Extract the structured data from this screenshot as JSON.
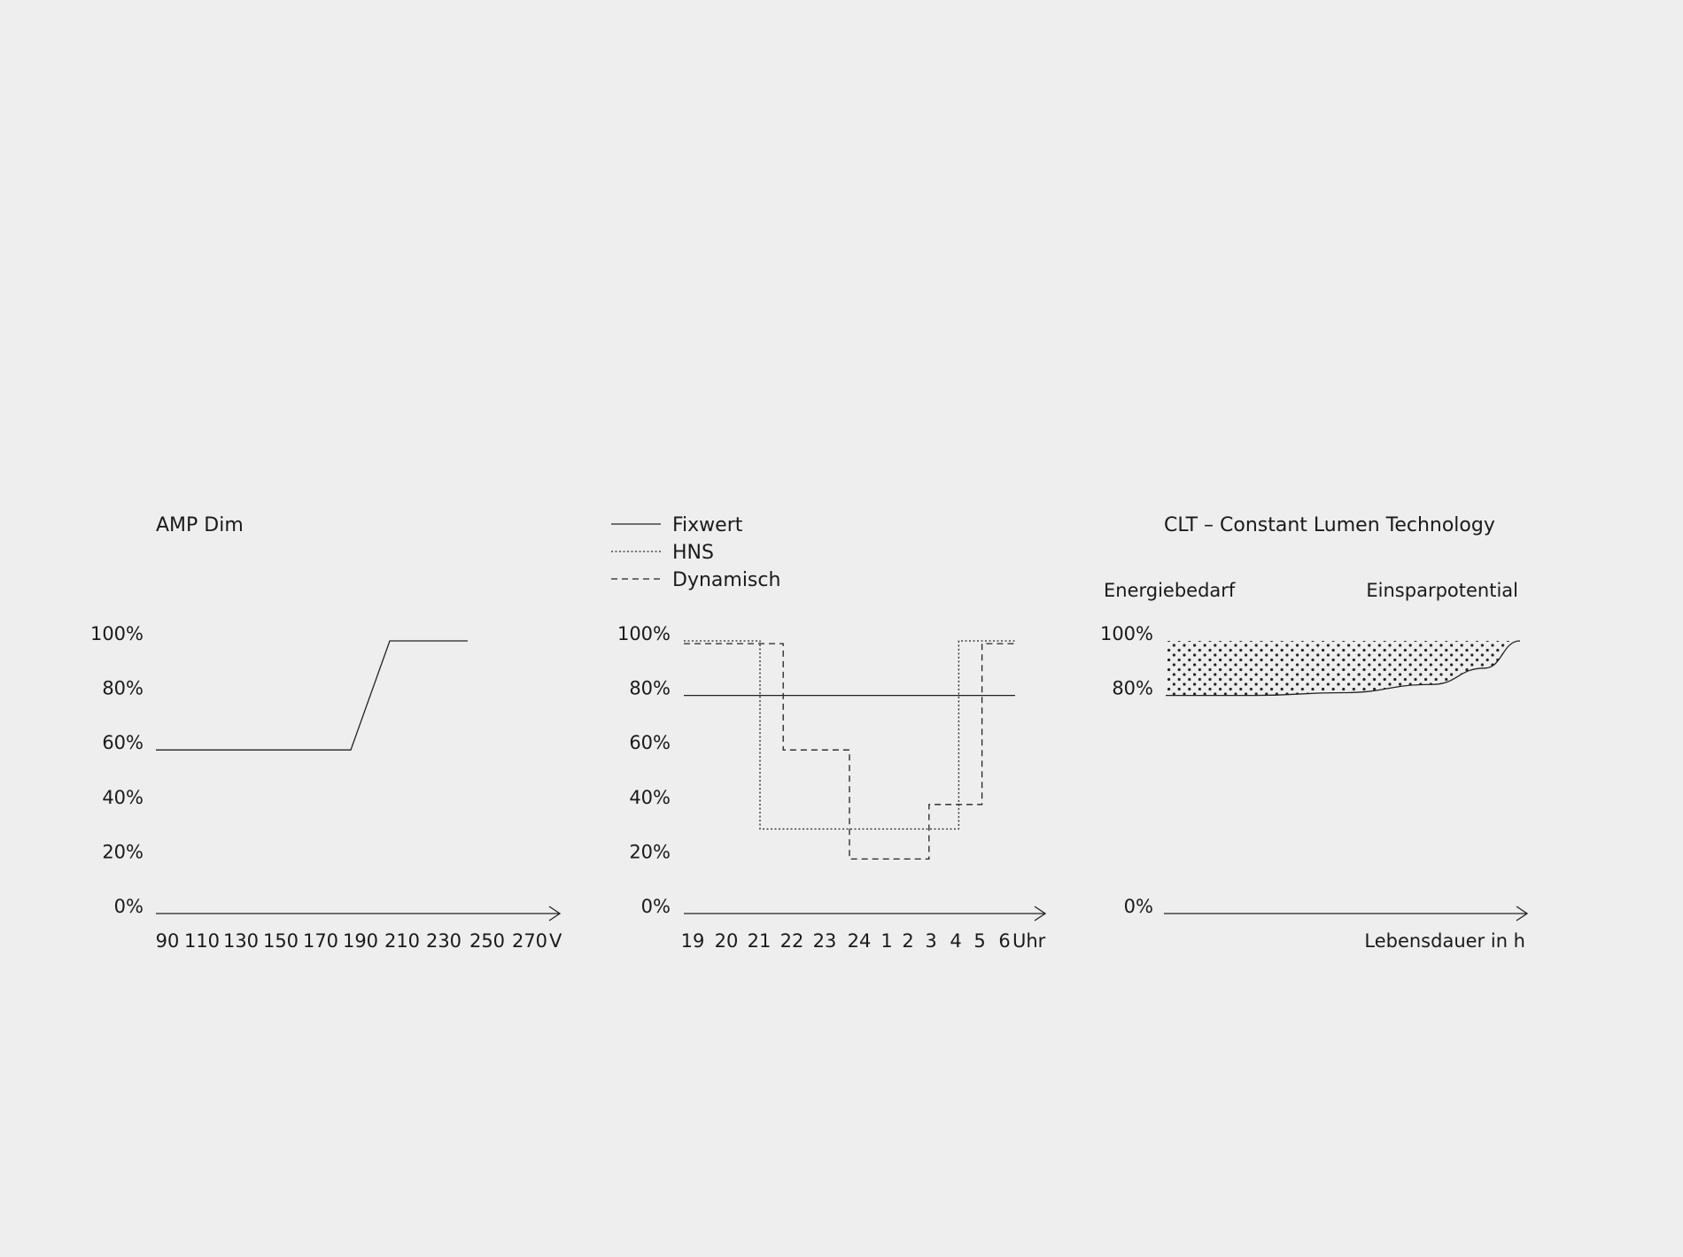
{
  "chart_data": [
    {
      "type": "line",
      "title": "AMP Dim",
      "yticks": [
        "0%",
        "20%",
        "40%",
        "60%",
        "80%",
        "100%"
      ],
      "xticks": [
        "90",
        "110",
        "130",
        "150",
        "170",
        "190",
        "210",
        "230",
        "250",
        "270"
      ],
      "xunit": "V",
      "series": [
        {
          "x": [
            90,
            190,
            210,
            250
          ],
          "y": [
            60,
            60,
            100,
            100
          ],
          "style": "solid"
        }
      ],
      "ylim": [
        0,
        100
      ],
      "xlim": [
        90,
        280
      ]
    },
    {
      "type": "line",
      "legend": [
        {
          "name": "Fixwert",
          "style": "solid"
        },
        {
          "name": "HNS",
          "style": "dotted"
        },
        {
          "name": "Dynamisch",
          "style": "dashed"
        }
      ],
      "legend_position": "top-left",
      "yticks": [
        "0%",
        "20%",
        "40%",
        "60%",
        "80%",
        "100%"
      ],
      "xticks": [
        "19",
        "20",
        "21",
        "22",
        "23",
        "24",
        "1",
        "2",
        "3",
        "4",
        "5",
        "6"
      ],
      "xunit": "Uhr",
      "series": [
        {
          "name": "Fixwert",
          "style": "solid",
          "x": [
            19,
            29
          ],
          "y": [
            80,
            80
          ]
        },
        {
          "name": "HNS",
          "style": "dotted",
          "x": [
            19,
            21.3,
            21.3,
            27.3,
            27.3,
            29
          ],
          "y": [
            100,
            100,
            31,
            31,
            100,
            100
          ]
        },
        {
          "name": "Dynamisch",
          "style": "dashed",
          "x": [
            19,
            22,
            22,
            24,
            24,
            26.4,
            26.4,
            28,
            28,
            29
          ],
          "y": [
            99,
            99,
            60,
            60,
            20,
            20,
            40,
            40,
            99,
            99
          ]
        }
      ],
      "ylim": [
        0,
        100
      ],
      "xlim": [
        19,
        30
      ]
    },
    {
      "type": "area",
      "title": "CLT – Constant Lumen Technology",
      "annotations": [
        "Energiebedarf",
        "Einsparpotential"
      ],
      "yticks": [
        "0%",
        "80%",
        "100%"
      ],
      "xlabel": "Lebensdauer in h",
      "series": [
        {
          "name": "Energiebedarf",
          "style": "solid",
          "x": [
            0,
            0.25,
            0.5,
            0.75,
            0.9,
            1.0
          ],
          "y": [
            80,
            80,
            81,
            84,
            90,
            100
          ]
        }
      ],
      "fill_between": {
        "upper": 100,
        "pattern": "dots"
      },
      "ylim": [
        0,
        100
      ],
      "xlim": [
        0,
        1.02
      ]
    }
  ]
}
